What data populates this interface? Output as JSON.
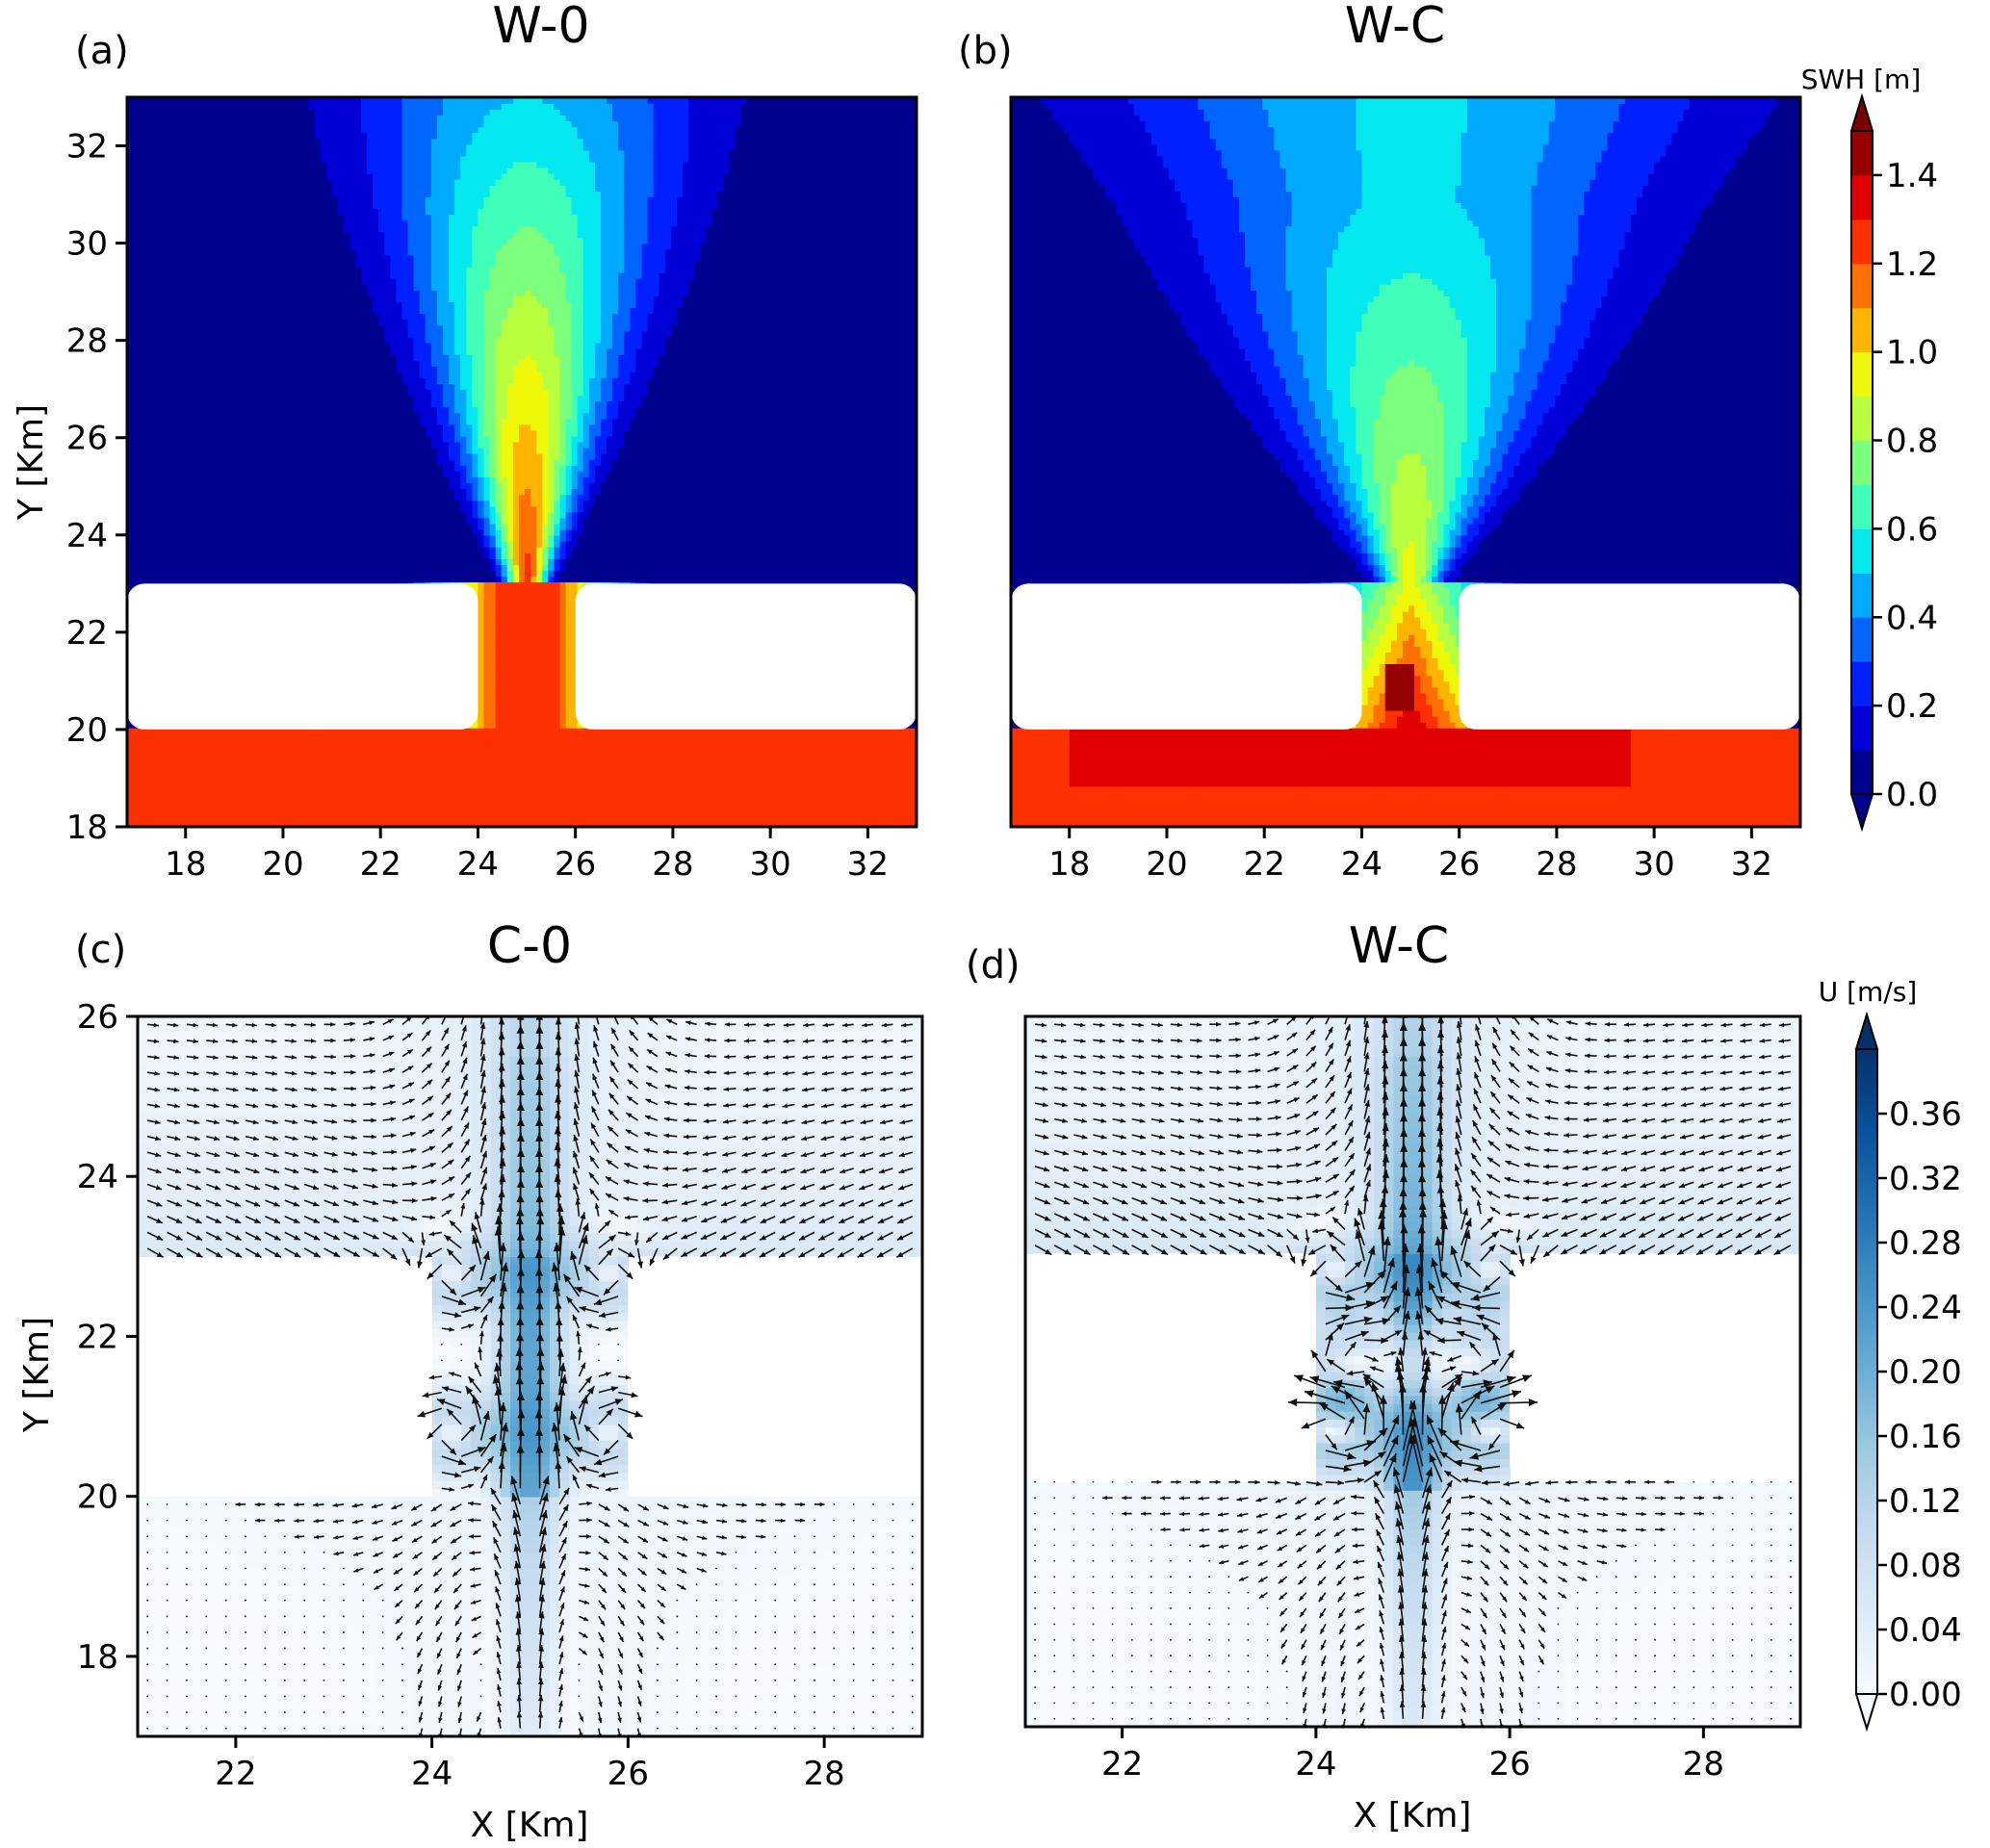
{
  "colors": {
    "jet": [
      "#00008f",
      "#0000d6",
      "#0020ff",
      "#0066ff",
      "#00aaff",
      "#06e8f0",
      "#40ffb8",
      "#7cff7c",
      "#b8ff40",
      "#f0f80a",
      "#ffb400",
      "#ff7000",
      "#ff3000",
      "#e00000",
      "#960000"
    ],
    "blues": [
      "#f7fbff",
      "#deebf7",
      "#c6dbef",
      "#9ecae1",
      "#6baed6",
      "#4292c6",
      "#2171b5",
      "#08519c",
      "#08306b"
    ],
    "arrow": "#111111"
  },
  "chart_data": [
    {
      "id": "a",
      "type": "heatmap",
      "panel_label": "(a)",
      "title": "W-0",
      "xlabel": "",
      "ylabel": "Y [Km]",
      "xlim": [
        16.8,
        33.0
      ],
      "ylim": [
        18.0,
        33.0
      ],
      "xticks": [
        18,
        20,
        22,
        24,
        26,
        28,
        30,
        32
      ],
      "yticks": [
        18,
        20,
        22,
        24,
        26,
        28,
        30,
        32
      ],
      "land": [
        {
          "x0": 16.8,
          "x1": 24.0,
          "y0": 20.0,
          "y1": 23.0
        },
        {
          "x0": 26.0,
          "x1": 33.0,
          "y0": 20.0,
          "y1": 23.0
        }
      ],
      "variable": "SWH [m]"
    },
    {
      "id": "b",
      "type": "heatmap",
      "panel_label": "(b)",
      "title": "W-C",
      "xlabel": "",
      "ylabel": "",
      "xlim": [
        16.8,
        33.0
      ],
      "ylim": [
        18.0,
        33.0
      ],
      "xticks": [
        18,
        20,
        22,
        24,
        26,
        28,
        30,
        32
      ],
      "yticks": [],
      "land": [
        {
          "x0": 16.8,
          "x1": 24.0,
          "y0": 20.0,
          "y1": 23.0
        },
        {
          "x0": 26.0,
          "x1": 33.0,
          "y0": 20.0,
          "y1": 23.0
        }
      ],
      "variable": "SWH [m]"
    },
    {
      "id": "c",
      "type": "vector-field",
      "panel_label": "(c)",
      "title": "C-0",
      "xlabel": "X [Km]",
      "ylabel": "Y [Km]",
      "xlim": [
        21.0,
        29.0
      ],
      "ylim": [
        17.0,
        26.0
      ],
      "xticks": [
        22,
        24,
        26,
        28
      ],
      "yticks": [
        18,
        20,
        22,
        24,
        26
      ],
      "land": [
        {
          "x0": 21.0,
          "x1": 24.0,
          "y0": 20.0,
          "y1": 23.0
        },
        {
          "x0": 26.0,
          "x1": 29.0,
          "y0": 20.0,
          "y1": 23.0
        }
      ],
      "variable": "U [m/s]"
    },
    {
      "id": "d",
      "type": "vector-field",
      "panel_label": "(d)",
      "title": "W-C",
      "xlabel": "X [Km]",
      "ylabel": "",
      "xlim": [
        21.0,
        29.0
      ],
      "ylim": [
        17.0,
        26.0
      ],
      "xticks": [
        22,
        24,
        26,
        28
      ],
      "yticks": [],
      "land": [
        {
          "x0": 21.0,
          "x1": 24.0,
          "y0": 20.1,
          "y1": 23.0
        },
        {
          "x0": 26.0,
          "x1": 29.0,
          "y0": 20.1,
          "y1": 23.0
        }
      ],
      "variable": "U [m/s]"
    }
  ],
  "colorbars": [
    {
      "id": "swh",
      "label": "SWH [m]",
      "range": [
        0.0,
        1.5
      ],
      "ticks": [
        "0.0",
        "0.2",
        "0.4",
        "0.6",
        "0.8",
        "1.0",
        "1.2",
        "1.4"
      ],
      "tick_values": [
        0.0,
        0.2,
        0.4,
        0.6,
        0.8,
        1.0,
        1.2,
        1.4
      ]
    },
    {
      "id": "u",
      "label": "U [m/s]",
      "range": [
        0.0,
        0.4
      ],
      "ticks": [
        "0.00",
        "0.04",
        "0.08",
        "0.12",
        "0.16",
        "0.20",
        "0.24",
        "0.28",
        "0.32",
        "0.36"
      ],
      "tick_values": [
        0.0,
        0.04,
        0.08,
        0.12,
        0.16,
        0.2,
        0.24,
        0.28,
        0.32,
        0.36
      ]
    }
  ]
}
